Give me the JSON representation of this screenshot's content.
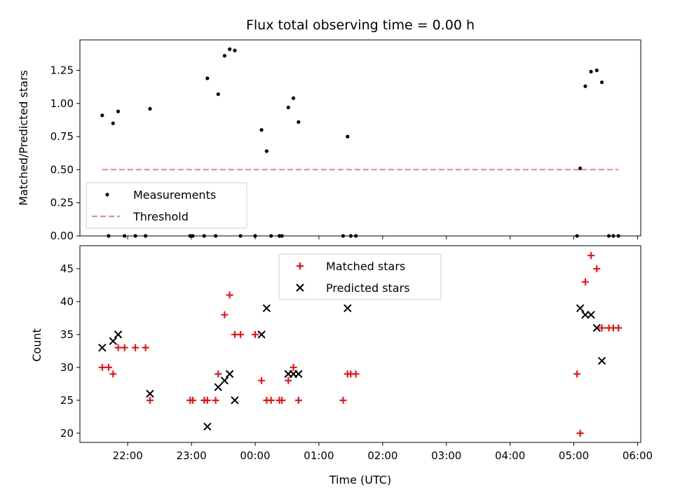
{
  "chart_data": {
    "type": "scatter",
    "title": "Flux total observing time = 0.00 h",
    "xlabel": "Time (UTC)",
    "x_axis": {
      "unit": "hours since 00:00 UTC",
      "range": [
        -2.75,
        6.05
      ],
      "ticks": [
        -2,
        -1,
        0,
        1,
        2,
        3,
        4,
        5,
        6
      ],
      "tick_labels": [
        "22:00",
        "23:00",
        "00:00",
        "01:00",
        "02:00",
        "03:00",
        "04:00",
        "05:00",
        "06:00"
      ]
    },
    "panels": [
      {
        "name": "ratio",
        "ylabel": "Matched/Predicted stars",
        "ylim": [
          0,
          1.48
        ],
        "yticks": [
          0,
          0.25,
          0.5,
          0.75,
          1.0,
          1.25
        ],
        "ytick_labels": [
          "0.00",
          "0.25",
          "0.50",
          "0.75",
          "1.00",
          "1.25"
        ],
        "legend": [
          "Measurements",
          "Threshold"
        ],
        "series": [
          {
            "name": "Measurements",
            "color": "#000000",
            "marker": "dot",
            "points": [
              [
                -2.4,
                0.91
              ],
              [
                -2.23,
                0.85
              ],
              [
                -2.15,
                0.94
              ],
              [
                -1.65,
                0.96
              ],
              [
                -0.75,
                1.19
              ],
              [
                -0.58,
                1.07
              ],
              [
                -0.48,
                1.36
              ],
              [
                -0.4,
                1.41
              ],
              [
                -0.32,
                1.4
              ],
              [
                0.1,
                0.8
              ],
              [
                0.18,
                0.64
              ],
              [
                0.52,
                0.97
              ],
              [
                0.6,
                1.04
              ],
              [
                0.68,
                0.86
              ],
              [
                1.45,
                0.75
              ],
              [
                5.1,
                0.51
              ],
              [
                5.18,
                1.13
              ],
              [
                5.27,
                1.24
              ],
              [
                5.36,
                1.25
              ],
              [
                5.44,
                1.16
              ],
              [
                -2.3,
                0
              ],
              [
                -2.05,
                0
              ],
              [
                -1.88,
                0
              ],
              [
                -1.72,
                0
              ],
              [
                -1.02,
                0
              ],
              [
                -0.98,
                0
              ],
              [
                -0.8,
                0
              ],
              [
                -0.62,
                0
              ],
              [
                -0.23,
                0
              ],
              [
                0.0,
                0
              ],
              [
                0.25,
                0
              ],
              [
                0.38,
                0
              ],
              [
                0.42,
                0
              ],
              [
                1.38,
                0
              ],
              [
                1.5,
                0
              ],
              [
                1.58,
                0
              ],
              [
                5.05,
                0
              ],
              [
                5.55,
                0
              ],
              [
                5.62,
                0
              ],
              [
                5.7,
                0
              ]
            ]
          },
          {
            "name": "Threshold",
            "color": "#ff7f7f",
            "style": "dashed",
            "points": [
              [
                -2.4,
                0.5
              ],
              [
                5.7,
                0.5
              ]
            ]
          }
        ]
      },
      {
        "name": "count",
        "ylabel": "Count",
        "ylim": [
          18.6,
          48.5
        ],
        "yticks": [
          20,
          25,
          30,
          35,
          40,
          45
        ],
        "ytick_labels": [
          "20",
          "25",
          "30",
          "35",
          "40",
          "45"
        ],
        "legend": [
          "Matched stars",
          "Predicted stars"
        ],
        "series": [
          {
            "name": "Matched stars",
            "color": "#ff0000",
            "marker": "plus",
            "points": [
              [
                -2.4,
                30
              ],
              [
                -2.3,
                30
              ],
              [
                -2.23,
                29
              ],
              [
                -2.15,
                33
              ],
              [
                -2.05,
                33
              ],
              [
                -1.88,
                33
              ],
              [
                -1.72,
                33
              ],
              [
                -1.65,
                25
              ],
              [
                -1.02,
                25
              ],
              [
                -0.98,
                25
              ],
              [
                -0.8,
                25
              ],
              [
                -0.75,
                25
              ],
              [
                -0.62,
                25
              ],
              [
                -0.58,
                29
              ],
              [
                -0.48,
                38
              ],
              [
                -0.4,
                41
              ],
              [
                -0.32,
                35
              ],
              [
                -0.23,
                35
              ],
              [
                0.0,
                35
              ],
              [
                0.1,
                28
              ],
              [
                0.18,
                25
              ],
              [
                0.25,
                25
              ],
              [
                0.38,
                25
              ],
              [
                0.42,
                25
              ],
              [
                0.52,
                28
              ],
              [
                0.6,
                30
              ],
              [
                0.68,
                25
              ],
              [
                1.38,
                25
              ],
              [
                1.45,
                29
              ],
              [
                1.5,
                29
              ],
              [
                1.58,
                29
              ],
              [
                5.05,
                29
              ],
              [
                5.1,
                20
              ],
              [
                5.18,
                43
              ],
              [
                5.27,
                47
              ],
              [
                5.36,
                45
              ],
              [
                5.44,
                36
              ],
              [
                5.55,
                36
              ],
              [
                5.62,
                36
              ],
              [
                5.7,
                36
              ]
            ]
          },
          {
            "name": "Predicted stars",
            "color": "#000000",
            "marker": "x",
            "points": [
              [
                -2.4,
                33
              ],
              [
                -2.23,
                34
              ],
              [
                -2.15,
                35
              ],
              [
                -1.65,
                26
              ],
              [
                -0.75,
                21
              ],
              [
                -0.58,
                27
              ],
              [
                -0.48,
                28
              ],
              [
                -0.4,
                29
              ],
              [
                -0.32,
                25
              ],
              [
                0.1,
                35
              ],
              [
                0.18,
                39
              ],
              [
                0.52,
                29
              ],
              [
                0.6,
                29
              ],
              [
                0.68,
                29
              ],
              [
                1.45,
                39
              ],
              [
                5.1,
                39
              ],
              [
                5.18,
                38
              ],
              [
                5.27,
                38
              ],
              [
                5.36,
                36
              ],
              [
                5.44,
                31
              ]
            ]
          }
        ]
      }
    ]
  }
}
